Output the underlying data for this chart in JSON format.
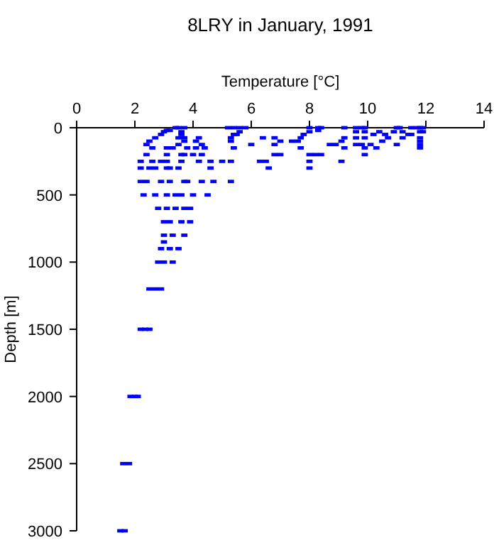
{
  "chart_data": {
    "type": "scatter",
    "title": "8LRY in January, 1991",
    "xlabel": "Temperature [°C]",
    "ylabel": "Depth [m]",
    "xlim": [
      0,
      14
    ],
    "xticks": [
      0,
      2,
      4,
      6,
      8,
      10,
      12,
      14
    ],
    "ylim": [
      3000,
      0
    ],
    "yticks": [
      0,
      500,
      1000,
      1500,
      2000,
      2500,
      3000
    ],
    "grid": false,
    "marker": "square",
    "series": [
      {
        "color": "#0000ff",
        "x": [
          3.4,
          3.5,
          3.7,
          5.2,
          5.4,
          5.6,
          5.8,
          8.0,
          8.3,
          8.4,
          9.2,
          9.6,
          9.8,
          9.9,
          11.0,
          11.1,
          11.5,
          11.7,
          11.8,
          11.9,
          3.1,
          3.2,
          8.3,
          3.0,
          3.6,
          9.6,
          9.9,
          10.4,
          10.9,
          11.2,
          11.8,
          11.9,
          8.0,
          5.6,
          3.6,
          5.4,
          7.8,
          10.6,
          11.5,
          2.9,
          10.2,
          5.5,
          11.4,
          2.7,
          3.5,
          3.7,
          4.2,
          5.3,
          6.4,
          6.8,
          7.7,
          9.2,
          9.6,
          9.9,
          11.2,
          11.8,
          10.7,
          2.5,
          3.7,
          4.1,
          5.3,
          7.0,
          7.4,
          7.6,
          9.1,
          10.5,
          11.8,
          2.4,
          3.5,
          4.3,
          6.0,
          6.8,
          8.7,
          8.9,
          9.6,
          9.8,
          10.1,
          11.0,
          11.8,
          2.6,
          3.1,
          3.3,
          3.8,
          4.1,
          4.4,
          5.4,
          7.7,
          9.2,
          9.9,
          10.3,
          11.8,
          2.4,
          3.1,
          3.6,
          3.7,
          4.0,
          4.3,
          6.8,
          7.0,
          8.0,
          8.2,
          8.4,
          9.9,
          2.2,
          2.6,
          2.9,
          3.1,
          3.6,
          4.2,
          4.6,
          5.0,
          5.3,
          6.3,
          6.5,
          8.0,
          9.1,
          2.2,
          2.5,
          2.7,
          3.1,
          3.2,
          3.5,
          4.6,
          6.6,
          8.0,
          2.2,
          2.4,
          2.9,
          3.2,
          3.7,
          3.8,
          4.3,
          4.7,
          5.3,
          2.3,
          2.7,
          3.1,
          3.4,
          3.6,
          4.0,
          4.5,
          2.8,
          3.1,
          3.4,
          3.7,
          3.9,
          3.0,
          3.2,
          3.6,
          3.9,
          3.0,
          3.3,
          3.7,
          3.0,
          2.9,
          3.2,
          3.5,
          2.8,
          3.0,
          3.3,
          2.5,
          2.7,
          2.9,
          2.2,
          2.35,
          2.5,
          1.85,
          2.0,
          2.1,
          1.6,
          1.8,
          1.5,
          1.65
        ],
        "values": [
          0,
          0,
          0,
          0,
          0,
          0,
          0,
          0,
          0,
          0,
          0,
          0,
          0,
          0,
          0,
          0,
          0,
          0,
          0,
          0,
          20,
          20,
          20,
          30,
          30,
          30,
          30,
          30,
          30,
          30,
          30,
          30,
          30,
          30,
          50,
          50,
          50,
          50,
          50,
          50,
          50,
          50,
          50,
          75,
          75,
          75,
          75,
          75,
          75,
          75,
          75,
          75,
          75,
          75,
          75,
          75,
          75,
          100,
          100,
          100,
          100,
          100,
          100,
          100,
          100,
          100,
          100,
          125,
          125,
          125,
          125,
          125,
          125,
          125,
          125,
          125,
          125,
          125,
          125,
          150,
          150,
          150,
          150,
          150,
          150,
          150,
          150,
          150,
          150,
          150,
          150,
          200,
          200,
          200,
          200,
          200,
          200,
          200,
          200,
          200,
          200,
          200,
          200,
          250,
          250,
          250,
          250,
          250,
          250,
          250,
          250,
          250,
          250,
          250,
          250,
          250,
          300,
          300,
          300,
          300,
          300,
          300,
          300,
          300,
          300,
          400,
          400,
          400,
          400,
          400,
          400,
          400,
          400,
          400,
          500,
          500,
          500,
          500,
          500,
          500,
          500,
          600,
          600,
          600,
          600,
          600,
          700,
          700,
          700,
          700,
          800,
          800,
          800,
          850,
          900,
          900,
          900,
          1000,
          1000,
          1000,
          1200,
          1200,
          1200,
          1500,
          1500,
          1500,
          2000,
          2000,
          2000,
          2500,
          2500,
          3000,
          3000
        ]
      }
    ]
  }
}
